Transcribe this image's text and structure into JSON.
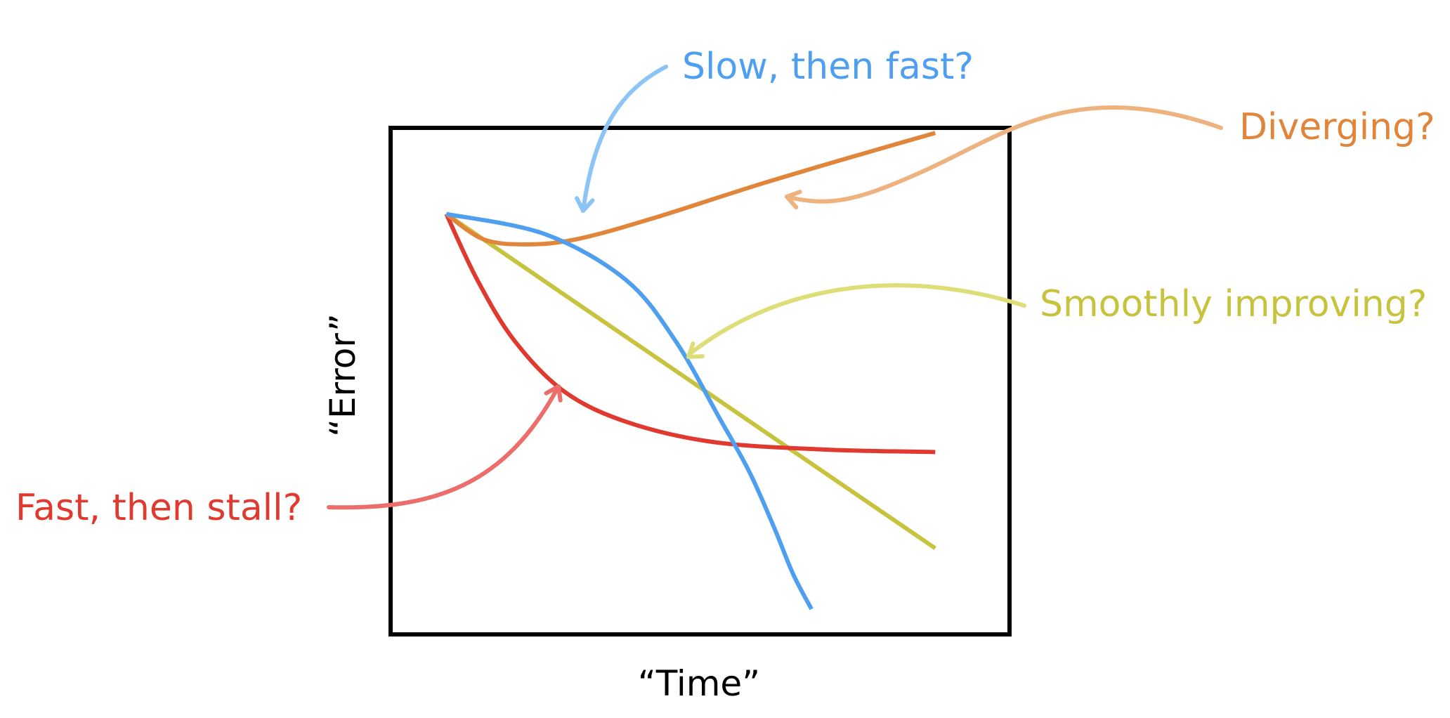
{
  "colors": {
    "frame": "#000000",
    "blue": "#4E9FEF",
    "blue_arrow": "#8CC4F5",
    "orange": "#E0853A",
    "orange_arrow": "#EDB27E",
    "yellow": "#C7C33E",
    "yellow_arrow": "#DEDE78",
    "red": "#E0392F",
    "red_arrow": "#EB6E6A"
  },
  "chart_data": {
    "type": "line",
    "title": "",
    "xlabel": "“Time”",
    "ylabel": "“Error”",
    "xlim": [
      0,
      1
    ],
    "ylim": [
      0,
      1
    ],
    "grid": false,
    "legend": "none",
    "series": [
      {
        "name": "Slow, then fast?",
        "color": "blue",
        "points": [
          [
            0.09,
            0.83
          ],
          [
            0.25,
            0.79
          ],
          [
            0.38,
            0.7
          ],
          [
            0.46,
            0.58
          ],
          [
            0.53,
            0.43
          ],
          [
            0.58,
            0.32
          ],
          [
            0.62,
            0.21
          ],
          [
            0.65,
            0.12
          ],
          [
            0.68,
            0.05
          ]
        ]
      },
      {
        "name": "Diverging?",
        "color": "orange",
        "points": [
          [
            0.09,
            0.83
          ],
          [
            0.15,
            0.78
          ],
          [
            0.22,
            0.77
          ],
          [
            0.3,
            0.78
          ],
          [
            0.42,
            0.82
          ],
          [
            0.6,
            0.89
          ],
          [
            0.78,
            0.955
          ],
          [
            0.88,
            0.99
          ]
        ]
      },
      {
        "name": "Smoothly improving?",
        "color": "yellow",
        "points": [
          [
            0.09,
            0.83
          ],
          [
            0.88,
            0.17
          ]
        ]
      },
      {
        "name": "Fast, then stall?",
        "color": "red",
        "points": [
          [
            0.09,
            0.83
          ],
          [
            0.14,
            0.7
          ],
          [
            0.2,
            0.58
          ],
          [
            0.28,
            0.48
          ],
          [
            0.38,
            0.42
          ],
          [
            0.52,
            0.38
          ],
          [
            0.7,
            0.365
          ],
          [
            0.88,
            0.36
          ]
        ]
      }
    ],
    "annotations": [
      {
        "text": "Slow, then fast?",
        "series": 0
      },
      {
        "text": "Diverging?",
        "series": 1
      },
      {
        "text": "Smoothly improving?",
        "series": 2
      },
      {
        "text": "Fast, then stall?",
        "series": 3
      }
    ]
  }
}
